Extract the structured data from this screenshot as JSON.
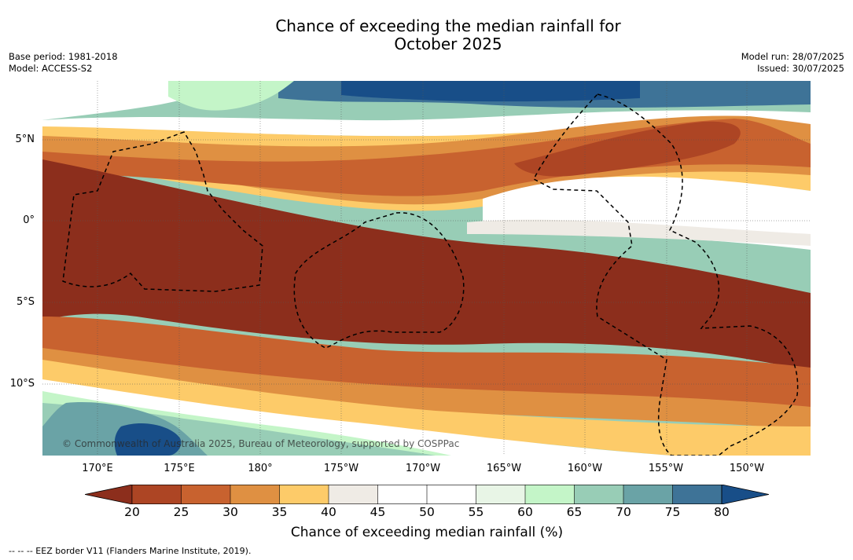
{
  "title_line1": "Chance of exceeding the median rainfall for",
  "title_line2": "October 2025",
  "base_period": "Base period: 1981-2018",
  "model": "Model: ACCESS-S2",
  "model_run": "Model run: 28/07/2025",
  "issued": "Issued: 30/07/2025",
  "copyright": "© Commonwealth of Australia 2025, Bureau of Meteorology, supported by COSPPac",
  "longitude_labels": [
    "170°E",
    "175°E",
    "180°",
    "175°W",
    "170°W",
    "165°W",
    "160°W",
    "155°W",
    "150°W"
  ],
  "latitude_labels": [
    "5°N",
    "0°",
    "5°S",
    "10°S"
  ],
  "colorbar": {
    "label": "Chance of exceeding median rainfall (%)",
    "ticks": [
      "20",
      "25",
      "30",
      "35",
      "40",
      "45",
      "50",
      "55",
      "60",
      "65",
      "70",
      "75",
      "80"
    ],
    "colors": {
      "below": "#8c2e1c",
      "c20_25": "#ad4524",
      "c25_30": "#c8622f",
      "c30_35": "#df9042",
      "c35_40": "#fdcb69",
      "c40_45": "#efebe5",
      "c45_50": "#ffffff",
      "c50_55": "#ffffff",
      "c55_60": "#e8f5e6",
      "c60_65": "#c4f5c8",
      "c65_70": "#98cdb6",
      "c70_75": "#6aa3a6",
      "c75_80": "#3e7397",
      "above": "#184e88"
    }
  },
  "footnote": "--  --  -- EEZ border V11 (Flanders Marine Institute, 2019)."
}
